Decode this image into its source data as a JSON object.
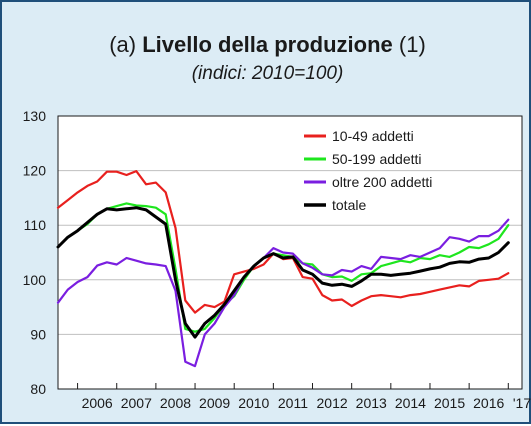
{
  "header": {
    "title_prefix": "(a)",
    "title_main": "Livello della produzione",
    "title_suffix": "(1)",
    "subtitle": "(indici: 2010=100)"
  },
  "colors": {
    "panel_background": "#dcecf5",
    "plot_background": "#ffffff",
    "border": "#1f4f7a",
    "grid": "#bfbfbf"
  },
  "chart_data": {
    "type": "line",
    "title": "Livello della produzione",
    "subtitle": "(indici: 2010=100)",
    "xlabel": "",
    "ylabel": "",
    "ylim": [
      80,
      130
    ],
    "xlim": [
      2005.5,
      2017.35
    ],
    "yticks": [
      "80",
      "90",
      "100",
      "110",
      "120",
      "130"
    ],
    "ytick_values": [
      80,
      90,
      100,
      110,
      120,
      130
    ],
    "xticks": [
      "2006",
      "2007",
      "2008",
      "2009",
      "2010",
      "2011",
      "2012",
      "2013",
      "2014",
      "2015",
      "2016",
      "'17"
    ],
    "xtick_positions": [
      2006,
      2007,
      2008,
      2009,
      2010,
      2011,
      2012,
      2013,
      2014,
      2015,
      2016,
      2016.85
    ],
    "grid": true,
    "legend_position": "top-right",
    "series": [
      {
        "name": "10-49 addetti",
        "color": "#e8201e",
        "x": [
          2005.5,
          2005.75,
          2006.0,
          2006.25,
          2006.5,
          2006.75,
          2007.0,
          2007.25,
          2007.5,
          2007.75,
          2008.0,
          2008.25,
          2008.5,
          2008.75,
          2009.0,
          2009.25,
          2009.5,
          2009.75,
          2010.0,
          2010.25,
          2010.5,
          2010.75,
          2011.0,
          2011.25,
          2011.5,
          2011.75,
          2012.0,
          2012.25,
          2012.5,
          2012.75,
          2013.0,
          2013.25,
          2013.5,
          2013.75,
          2014.0,
          2014.25,
          2014.5,
          2014.75,
          2015.0,
          2015.25,
          2015.5,
          2015.75,
          2016.0,
          2016.25,
          2016.5,
          2016.75,
          2017.0
        ],
        "values": [
          113.2,
          114.6,
          116.0,
          117.2,
          118.0,
          119.8,
          119.8,
          119.2,
          119.9,
          117.5,
          117.8,
          116.0,
          109.5,
          96.2,
          94.0,
          95.4,
          95.0,
          96.0,
          101.0,
          101.5,
          102.0,
          102.8,
          104.8,
          103.8,
          104.0,
          100.5,
          100.2,
          97.2,
          96.2,
          96.4,
          95.2,
          96.2,
          97.0,
          97.2,
          97.0,
          96.8,
          97.2,
          97.4,
          97.8,
          98.2,
          98.6,
          99.0,
          98.8,
          99.8,
          100.0,
          100.2,
          101.2
        ]
      },
      {
        "name": "50-199 addetti",
        "color": "#1ee61e",
        "x": [
          2005.5,
          2005.75,
          2006.0,
          2006.25,
          2006.5,
          2006.75,
          2007.0,
          2007.25,
          2007.5,
          2007.75,
          2008.0,
          2008.25,
          2008.5,
          2008.75,
          2009.0,
          2009.25,
          2009.5,
          2009.75,
          2010.0,
          2010.25,
          2010.5,
          2010.75,
          2011.0,
          2011.25,
          2011.5,
          2011.75,
          2012.0,
          2012.25,
          2012.5,
          2012.75,
          2013.0,
          2013.25,
          2013.5,
          2013.75,
          2014.0,
          2014.25,
          2014.5,
          2014.75,
          2015.0,
          2015.25,
          2015.5,
          2015.75,
          2016.0,
          2016.25,
          2016.5,
          2016.75,
          2017.0
        ],
        "values": [
          106.0,
          107.8,
          109.0,
          110.2,
          112.0,
          113.0,
          113.5,
          114.0,
          113.6,
          113.5,
          113.2,
          112.0,
          102.0,
          91.0,
          90.5,
          91.0,
          93.0,
          95.5,
          97.0,
          100.0,
          102.5,
          104.0,
          104.8,
          104.5,
          104.2,
          103.0,
          102.8,
          101.0,
          100.5,
          100.6,
          99.8,
          101.0,
          101.2,
          102.5,
          103.0,
          103.5,
          103.2,
          104.0,
          103.8,
          104.5,
          104.2,
          105.0,
          106.0,
          105.8,
          106.5,
          107.5,
          110.0
        ]
      },
      {
        "name": "oltre 200 addetti",
        "color": "#7a1ee0",
        "x": [
          2005.5,
          2005.75,
          2006.0,
          2006.25,
          2006.5,
          2006.75,
          2007.0,
          2007.25,
          2007.5,
          2007.75,
          2008.0,
          2008.25,
          2008.5,
          2008.75,
          2009.0,
          2009.25,
          2009.5,
          2009.75,
          2010.0,
          2010.25,
          2010.5,
          2010.75,
          2011.0,
          2011.25,
          2011.5,
          2011.75,
          2012.0,
          2012.25,
          2012.5,
          2012.75,
          2013.0,
          2013.25,
          2013.5,
          2013.75,
          2014.0,
          2014.25,
          2014.5,
          2014.75,
          2015.0,
          2015.25,
          2015.5,
          2015.75,
          2016.0,
          2016.25,
          2016.5,
          2016.75,
          2017.0
        ],
        "values": [
          95.8,
          98.2,
          99.6,
          100.5,
          102.6,
          103.2,
          102.8,
          104.0,
          103.5,
          103.0,
          102.8,
          102.5,
          98.0,
          85.0,
          84.2,
          90.0,
          92.0,
          95.0,
          97.2,
          100.5,
          102.5,
          104.0,
          105.8,
          105.0,
          104.8,
          103.0,
          102.2,
          101.0,
          100.8,
          101.8,
          101.5,
          102.5,
          102.0,
          104.2,
          104.0,
          103.8,
          104.5,
          104.2,
          105.0,
          105.8,
          107.8,
          107.5,
          107.0,
          108.0,
          108.0,
          109.0,
          111.0
        ]
      },
      {
        "name": "totale",
        "color": "#000000",
        "x": [
          2005.5,
          2005.75,
          2006.0,
          2006.25,
          2006.5,
          2006.75,
          2007.0,
          2007.25,
          2007.5,
          2007.75,
          2008.0,
          2008.25,
          2008.5,
          2008.75,
          2009.0,
          2009.25,
          2009.5,
          2009.75,
          2010.0,
          2010.25,
          2010.5,
          2010.75,
          2011.0,
          2011.25,
          2011.5,
          2011.75,
          2012.0,
          2012.25,
          2012.5,
          2012.75,
          2013.0,
          2013.25,
          2013.5,
          2013.75,
          2014.0,
          2014.25,
          2014.5,
          2014.75,
          2015.0,
          2015.25,
          2015.5,
          2015.75,
          2016.0,
          2016.25,
          2016.5,
          2016.75,
          2017.0
        ],
        "values": [
          106.0,
          107.8,
          109.0,
          110.5,
          112.0,
          113.0,
          112.8,
          113.0,
          113.2,
          112.8,
          111.5,
          110.2,
          100.0,
          92.0,
          89.5,
          92.0,
          93.5,
          95.5,
          98.0,
          100.5,
          102.5,
          104.0,
          104.8,
          104.0,
          104.2,
          101.8,
          101.0,
          99.4,
          99.0,
          99.2,
          98.8,
          99.8,
          101.0,
          101.0,
          100.8,
          101.0,
          101.2,
          101.6,
          102.0,
          102.3,
          103.0,
          103.3,
          103.2,
          103.8,
          104.0,
          105.0,
          106.8
        ]
      }
    ]
  }
}
